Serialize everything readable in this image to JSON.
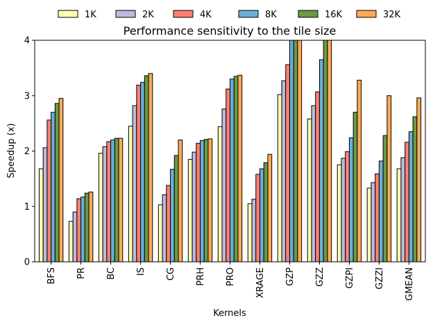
{
  "chart_data": {
    "type": "bar",
    "title": "Performance sensitivity to the tile size",
    "xlabel": "Kernels",
    "ylabel": "Speedup (x)",
    "ylim": [
      0,
      4
    ],
    "yticks": [
      "0",
      "1",
      "2",
      "3",
      "4"
    ],
    "grid": false,
    "legend_position": "top",
    "categories": [
      "BFS",
      "PR",
      "BC",
      "IS",
      "CG",
      "PRH",
      "PRO",
      "XRAGE",
      "GZP",
      "GZZ",
      "GZPI",
      "GZZI",
      "GMEAN"
    ],
    "series": [
      {
        "name": "1K",
        "color": "#ffffb3",
        "values": [
          1.68,
          0.73,
          1.96,
          2.45,
          1.03,
          1.85,
          2.44,
          1.05,
          3.02,
          2.58,
          1.75,
          1.33,
          1.68
        ]
      },
      {
        "name": "2K",
        "color": "#bebada",
        "values": [
          2.06,
          0.9,
          2.08,
          2.82,
          1.21,
          1.98,
          2.76,
          1.13,
          3.27,
          2.82,
          1.87,
          1.43,
          1.88
        ]
      },
      {
        "name": "4K",
        "color": "#fb8072",
        "values": [
          2.56,
          1.14,
          2.17,
          3.19,
          1.38,
          2.14,
          3.12,
          1.58,
          3.56,
          3.07,
          1.99,
          1.59,
          2.16
        ]
      },
      {
        "name": "8K",
        "color": "#6baed6",
        "values": [
          2.7,
          1.17,
          2.2,
          3.24,
          1.67,
          2.19,
          3.3,
          1.68,
          4.0,
          3.65,
          2.24,
          1.82,
          2.35
        ]
      },
      {
        "name": "16K",
        "color": "#6a9a48",
        "values": [
          2.86,
          1.24,
          2.23,
          3.36,
          1.92,
          2.21,
          3.35,
          1.79,
          4.0,
          4.0,
          2.7,
          2.28,
          2.62
        ]
      },
      {
        "name": "32K",
        "color": "#fdac55",
        "values": [
          2.95,
          1.26,
          2.23,
          3.4,
          2.2,
          2.22,
          3.37,
          1.94,
          4.0,
          4.0,
          3.28,
          3.0,
          2.96
        ]
      }
    ]
  }
}
